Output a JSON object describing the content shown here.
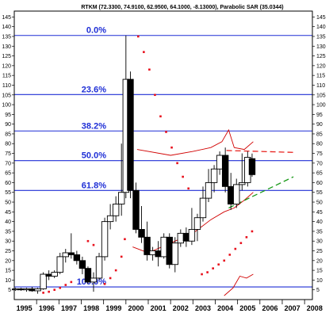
{
  "chart_data": {
    "type": "candlestick",
    "title": "RTKM (72.3300, 74.9100, 62.9500, 64.1000, -8.13000), Parabolic SAR (35.0344)",
    "x_ticks": [
      "1995",
      "1996",
      "1997",
      "1998",
      "1999",
      "2000",
      "2001",
      "2002",
      "2003",
      "2004",
      "2005",
      "2006",
      "2007",
      "2008"
    ],
    "y_ticks": [
      5,
      10,
      15,
      20,
      25,
      30,
      35,
      40,
      45,
      50,
      55,
      60,
      65,
      70,
      75,
      80,
      85,
      90,
      95,
      100,
      105,
      110,
      115,
      120,
      125,
      130,
      135,
      140,
      145
    ],
    "y_range": [
      0,
      148
    ],
    "x_range": [
      1995.0,
      2008.35
    ],
    "fib_levels": [
      {
        "label": "0.0%",
        "value": 135.5
      },
      {
        "label": "23.6%",
        "value": 105.2
      },
      {
        "label": "38.2%",
        "value": 86.5
      },
      {
        "label": "50.0%",
        "value": 71.3
      },
      {
        "label": "61.8%",
        "value": 56.0
      },
      {
        "label": "100.0%",
        "value": 6.5
      }
    ],
    "candles": [
      {
        "t": 1995.05,
        "o": 5.0,
        "h": 6.0,
        "l": 4.5,
        "c": 5.5
      },
      {
        "t": 1995.3,
        "o": 5.5,
        "h": 6.0,
        "l": 4.5,
        "c": 5.0
      },
      {
        "t": 1995.55,
        "o": 5.0,
        "h": 6.0,
        "l": 4.0,
        "c": 5.5
      },
      {
        "t": 1995.8,
        "o": 5.5,
        "h": 6.5,
        "l": 4.0,
        "c": 4.5
      },
      {
        "t": 1996.05,
        "o": 4.5,
        "h": 6.0,
        "l": 3.0,
        "c": 5.5
      },
      {
        "t": 1996.3,
        "o": 5.5,
        "h": 14.0,
        "l": 5.0,
        "c": 13.0
      },
      {
        "t": 1996.55,
        "o": 13.0,
        "h": 15.0,
        "l": 10.0,
        "c": 12.0
      },
      {
        "t": 1996.8,
        "o": 12.0,
        "h": 15.0,
        "l": 11.0,
        "c": 14.0
      },
      {
        "t": 1997.05,
        "o": 14.0,
        "h": 24.0,
        "l": 13.0,
        "c": 22.0
      },
      {
        "t": 1997.3,
        "o": 22.0,
        "h": 26.0,
        "l": 19.0,
        "c": 24.0
      },
      {
        "t": 1997.55,
        "o": 24.0,
        "h": 34.0,
        "l": 21.0,
        "c": 23.0
      },
      {
        "t": 1997.8,
        "o": 23.0,
        "h": 25.0,
        "l": 18.0,
        "c": 20.0
      },
      {
        "t": 1998.05,
        "o": 20.0,
        "h": 22.0,
        "l": 13.0,
        "c": 16.0
      },
      {
        "t": 1998.3,
        "o": 16.0,
        "h": 17.0,
        "l": 8.0,
        "c": 9.0
      },
      {
        "t": 1998.55,
        "o": 9.0,
        "h": 14.0,
        "l": 4.0,
        "c": 11.0
      },
      {
        "t": 1998.8,
        "o": 11.0,
        "h": 24.0,
        "l": 10.0,
        "c": 22.0
      },
      {
        "t": 1999.05,
        "o": 22.0,
        "h": 42.0,
        "l": 20.0,
        "c": 40.0
      },
      {
        "t": 1999.3,
        "o": 40.0,
        "h": 49.0,
        "l": 36.0,
        "c": 43.0
      },
      {
        "t": 1999.55,
        "o": 43.0,
        "h": 53.0,
        "l": 40.0,
        "c": 49.0
      },
      {
        "t": 1999.8,
        "o": 49.0,
        "h": 80.0,
        "l": 43.0,
        "c": 55.0
      },
      {
        "t": 2000.0,
        "o": 55.0,
        "h": 135.5,
        "l": 52.0,
        "c": 113.0
      },
      {
        "t": 2000.2,
        "o": 113.0,
        "h": 117.0,
        "l": 52.0,
        "c": 56.0
      },
      {
        "t": 2000.45,
        "o": 56.0,
        "h": 60.0,
        "l": 34.0,
        "c": 36.0
      },
      {
        "t": 2000.7,
        "o": 36.0,
        "h": 48.0,
        "l": 29.0,
        "c": 32.0
      },
      {
        "t": 2000.95,
        "o": 32.0,
        "h": 40.0,
        "l": 20.0,
        "c": 23.0
      },
      {
        "t": 2001.2,
        "o": 23.0,
        "h": 27.0,
        "l": 20.0,
        "c": 25.0
      },
      {
        "t": 2001.45,
        "o": 25.0,
        "h": 30.0,
        "l": 17.0,
        "c": 22.0
      },
      {
        "t": 2001.7,
        "o": 22.0,
        "h": 34.0,
        "l": 21.0,
        "c": 32.0
      },
      {
        "t": 2001.95,
        "o": 32.0,
        "h": 34.0,
        "l": 16.0,
        "c": 18.0
      },
      {
        "t": 2002.2,
        "o": 18.0,
        "h": 32.0,
        "l": 14.0,
        "c": 29.0
      },
      {
        "t": 2002.45,
        "o": 29.0,
        "h": 36.0,
        "l": 27.0,
        "c": 34.0
      },
      {
        "t": 2002.7,
        "o": 34.0,
        "h": 37.0,
        "l": 27.0,
        "c": 30.0
      },
      {
        "t": 2002.95,
        "o": 30.0,
        "h": 47.0,
        "l": 28.0,
        "c": 36.0
      },
      {
        "t": 2003.2,
        "o": 36.0,
        "h": 44.0,
        "l": 30.0,
        "c": 42.0
      },
      {
        "t": 2003.45,
        "o": 42.0,
        "h": 58.0,
        "l": 40.0,
        "c": 52.0
      },
      {
        "t": 2003.7,
        "o": 52.0,
        "h": 67.0,
        "l": 50.0,
        "c": 60.0
      },
      {
        "t": 2003.95,
        "o": 60.0,
        "h": 69.0,
        "l": 55.0,
        "c": 67.0
      },
      {
        "t": 2004.2,
        "o": 67.0,
        "h": 76.0,
        "l": 64.0,
        "c": 74.0
      },
      {
        "t": 2004.45,
        "o": 74.0,
        "h": 78.0,
        "l": 55.0,
        "c": 58.0
      },
      {
        "t": 2004.7,
        "o": 58.0,
        "h": 65.0,
        "l": 46.0,
        "c": 49.0
      },
      {
        "t": 2004.95,
        "o": 49.0,
        "h": 62.0,
        "l": 47.0,
        "c": 59.0
      },
      {
        "t": 2005.2,
        "o": 59.0,
        "h": 75.0,
        "l": 56.0,
        "c": 60.0
      },
      {
        "t": 2005.45,
        "o": 60.0,
        "h": 76.0,
        "l": 58.0,
        "c": 73.0
      },
      {
        "t": 2005.65,
        "o": 72.3,
        "h": 74.9,
        "l": 62.95,
        "c": 64.1
      }
    ],
    "parabolic_sar": [
      {
        "t": 1996.3,
        "v": 3.5
      },
      {
        "t": 1996.55,
        "v": 4.0
      },
      {
        "t": 1996.8,
        "v": 5.0
      },
      {
        "t": 1997.05,
        "v": 6.0
      },
      {
        "t": 1997.3,
        "v": 7.5
      },
      {
        "t": 1997.55,
        "v": 9.0
      },
      {
        "t": 1998.3,
        "v": 30.0
      },
      {
        "t": 1998.55,
        "v": 28.0
      },
      {
        "t": 1999.05,
        "v": 8.0
      },
      {
        "t": 1999.3,
        "v": 11.0
      },
      {
        "t": 1999.55,
        "v": 15.0
      },
      {
        "t": 1999.8,
        "v": 22.0
      },
      {
        "t": 1999.95,
        "v": 31.0
      },
      {
        "t": 2000.55,
        "v": 135.0
      },
      {
        "t": 2000.8,
        "v": 127.0
      },
      {
        "t": 2001.05,
        "v": 118.0
      },
      {
        "t": 2001.3,
        "v": 105.0
      },
      {
        "t": 2001.55,
        "v": 94.0
      },
      {
        "t": 2001.8,
        "v": 86.0
      },
      {
        "t": 2002.05,
        "v": 78.0
      },
      {
        "t": 2002.3,
        "v": 70.0
      },
      {
        "t": 2002.55,
        "v": 63.0
      },
      {
        "t": 2002.8,
        "v": 57.0
      },
      {
        "t": 2003.4,
        "v": 13.0
      },
      {
        "t": 2003.65,
        "v": 14.0
      },
      {
        "t": 2003.9,
        "v": 16.0
      },
      {
        "t": 2004.15,
        "v": 18.0
      },
      {
        "t": 2004.4,
        "v": 20.0
      },
      {
        "t": 2004.65,
        "v": 23.0
      },
      {
        "t": 2004.9,
        "v": 26.0
      },
      {
        "t": 2005.15,
        "v": 29.0
      },
      {
        "t": 2005.4,
        "v": 32.0
      },
      {
        "t": 2005.65,
        "v": 35.0
      }
    ],
    "envelope_upper": [
      [
        2000.5,
        77
      ],
      [
        2002.0,
        74
      ],
      [
        2003.0,
        76
      ],
      [
        2003.8,
        78
      ],
      [
        2004.3,
        81
      ],
      [
        2004.6,
        87
      ],
      [
        2004.85,
        78
      ],
      [
        2005.3,
        77
      ],
      [
        2005.7,
        81
      ]
    ],
    "envelope_mid": [
      [
        2000.3,
        27
      ],
      [
        2001.0,
        24
      ],
      [
        2002.0,
        29
      ],
      [
        2003.0,
        34
      ],
      [
        2003.8,
        41
      ],
      [
        2004.4,
        45
      ],
      [
        2004.85,
        47
      ],
      [
        2005.3,
        51
      ],
      [
        2005.7,
        55
      ]
    ],
    "envelope_lower": [
      [
        2004.4,
        2
      ],
      [
        2004.8,
        6
      ],
      [
        2005.1,
        12
      ],
      [
        2005.4,
        11
      ],
      [
        2005.7,
        13
      ]
    ],
    "resistance_line": [
      [
        2004.5,
        76.5
      ],
      [
        2007.5,
        75.5
      ]
    ],
    "support_line": [
      [
        2004.6,
        47
      ],
      [
        2007.5,
        63
      ]
    ]
  }
}
